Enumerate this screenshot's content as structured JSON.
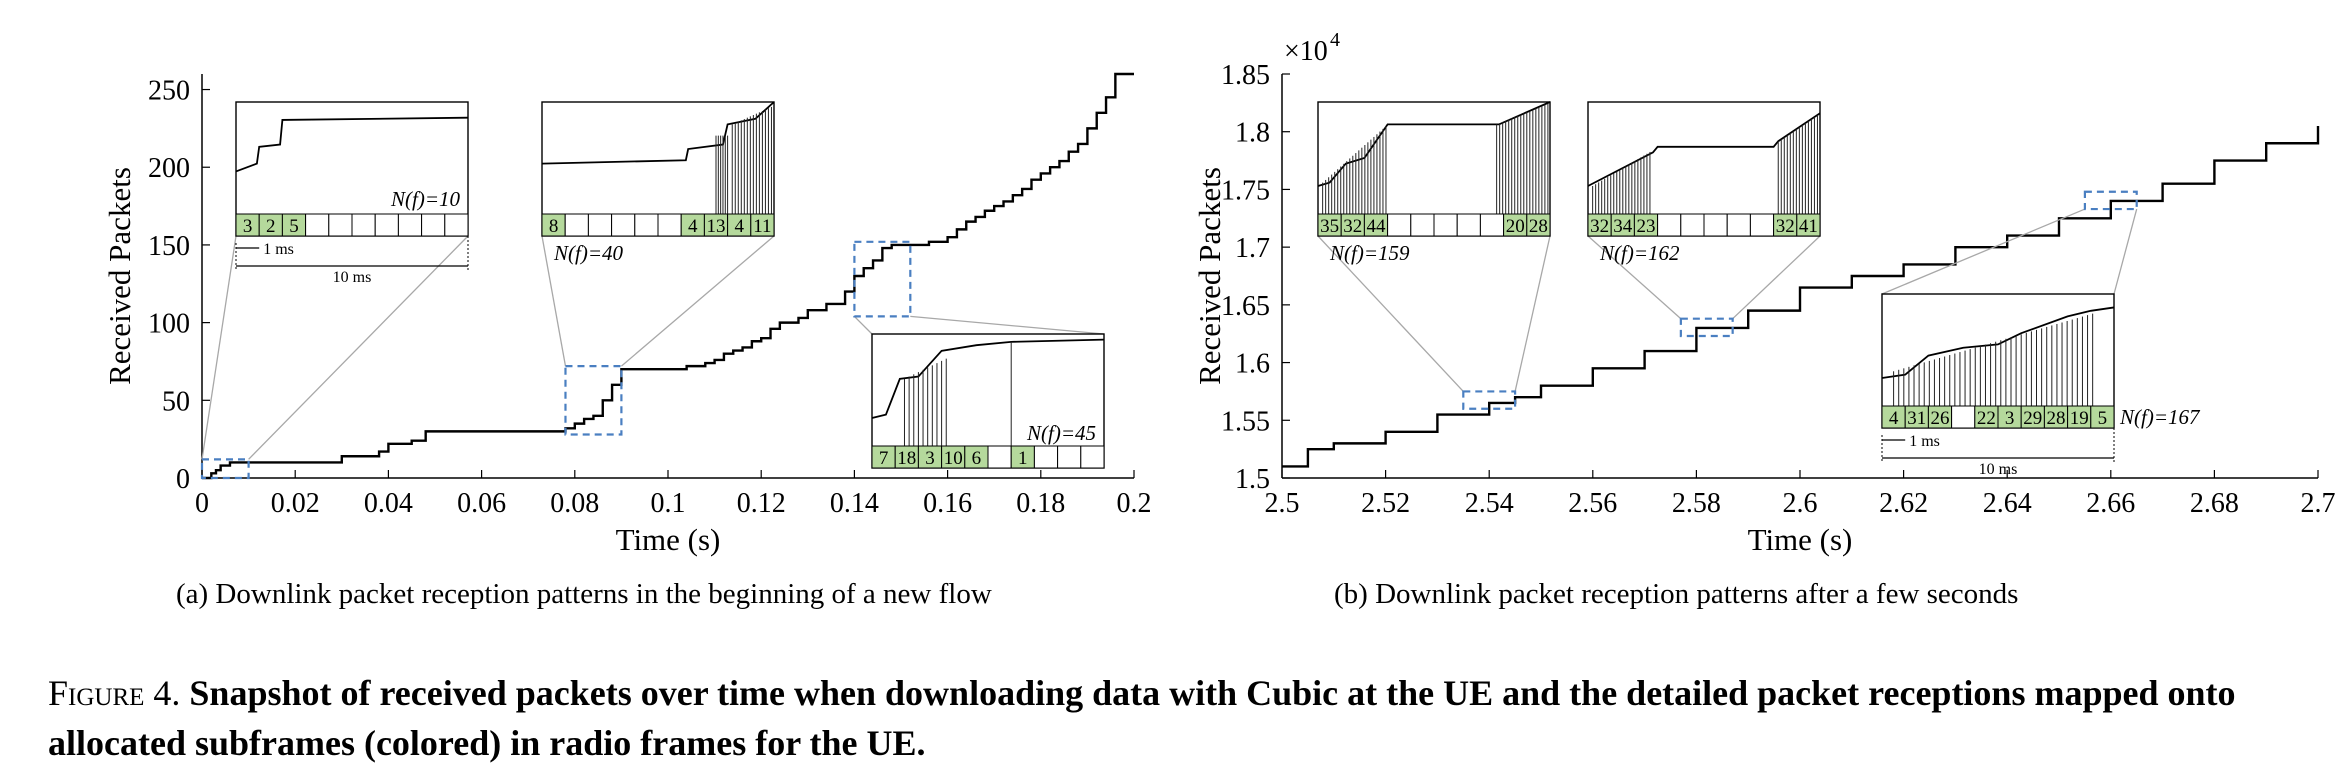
{
  "chart_data": [
    {
      "type": "line",
      "subcaption": "(a)  Downlink packet reception patterns in the beginning of a new flow",
      "xlabel": "Time (s)",
      "ylabel": "Received Packets",
      "xlim": [
        0,
        0.2
      ],
      "ylim": [
        0,
        260
      ],
      "x_ticks": [
        "0",
        "0.02",
        "0.04",
        "0.06",
        "0.08",
        "0.1",
        "0.12",
        "0.14",
        "0.16",
        "0.18",
        "0.2"
      ],
      "y_ticks": [
        "0",
        "50",
        "100",
        "150",
        "200",
        "250"
      ],
      "grid": false,
      "series": [
        {
          "x": [
            0,
            0.002,
            0.003,
            0.004,
            0.006,
            0.01,
            0.03,
            0.038,
            0.04,
            0.045,
            0.048,
            0.06,
            0.078,
            0.08,
            0.082,
            0.084,
            0.086,
            0.088,
            0.09,
            0.1,
            0.104,
            0.108,
            0.11,
            0.112,
            0.114,
            0.116,
            0.118,
            0.12,
            0.122,
            0.124,
            0.128,
            0.13,
            0.134,
            0.138,
            0.14,
            0.142,
            0.144,
            0.146,
            0.148,
            0.15,
            0.156,
            0.16,
            0.162,
            0.164,
            0.166,
            0.168,
            0.17,
            0.172,
            0.174,
            0.176,
            0.178,
            0.18,
            0.182,
            0.184,
            0.186,
            0.188,
            0.19,
            0.192,
            0.194,
            0.196,
            0.2
          ],
          "y": [
            0,
            3,
            5,
            8,
            10,
            10,
            14,
            17,
            22,
            24,
            30,
            30,
            32,
            35,
            38,
            40,
            50,
            60,
            70,
            70,
            72,
            74,
            76,
            80,
            82,
            84,
            88,
            90,
            96,
            100,
            103,
            108,
            112,
            120,
            130,
            135,
            140,
            148,
            150,
            150,
            152,
            155,
            160,
            165,
            168,
            172,
            175,
            178,
            182,
            186,
            192,
            196,
            200,
            204,
            210,
            215,
            225,
            235,
            245,
            260,
            260
          ]
        }
      ],
      "zoom_boxes": [
        {
          "x": [
            0,
            0.01
          ],
          "y": [
            0,
            12
          ]
        },
        {
          "x": [
            0.078,
            0.09
          ],
          "y": [
            28,
            72
          ]
        },
        {
          "x": [
            0.14,
            0.152
          ],
          "y": [
            104,
            152
          ]
        }
      ],
      "insets": [
        {
          "nf_label": "N(f)=10",
          "cells": [
            "3",
            "2",
            "5",
            "",
            "",
            "",
            "",
            "",
            "",
            ""
          ],
          "green": 3,
          "scale_1": "1 ms",
          "scale_10": "10 ms"
        },
        {
          "nf_label": "N(f)=40",
          "cells": [
            "8",
            "",
            "",
            "",
            "",
            "",
            "4",
            "13",
            "4",
            "11"
          ],
          "green_idx": [
            0,
            6,
            7,
            8,
            9
          ]
        },
        {
          "nf_label": "N(f)=45",
          "cells": [
            "7",
            "18",
            "3",
            "10",
            "6",
            "",
            "1",
            "",
            "",
            ""
          ],
          "green_idx": [
            0,
            1,
            2,
            3,
            4,
            6
          ]
        }
      ]
    },
    {
      "type": "line",
      "subcaption": "(b)  Downlink packet reception patterns after a few seconds",
      "xlabel": "Time (s)",
      "ylabel": "Received Packets",
      "y_multiplier": "×10",
      "y_multiplier_exp": "4",
      "xlim": [
        2.5,
        2.7
      ],
      "ylim": [
        1.5,
        1.85
      ],
      "x_ticks": [
        "2.5",
        "2.52",
        "2.54",
        "2.56",
        "2.58",
        "2.6",
        "2.62",
        "2.64",
        "2.66",
        "2.68",
        "2.7"
      ],
      "y_ticks": [
        "1.5",
        "1.55",
        "1.6",
        "1.65",
        "1.7",
        "1.75",
        "1.8",
        "1.85"
      ],
      "grid": false,
      "series": [
        {
          "x": [
            2.5,
            2.505,
            2.51,
            2.52,
            2.53,
            2.54,
            2.545,
            2.55,
            2.56,
            2.57,
            2.58,
            2.59,
            2.6,
            2.61,
            2.62,
            2.63,
            2.64,
            2.65,
            2.66,
            2.67,
            2.68,
            2.69,
            2.7
          ],
          "y": [
            1.51,
            1.525,
            1.53,
            1.54,
            1.555,
            1.565,
            1.57,
            1.58,
            1.595,
            1.61,
            1.63,
            1.645,
            1.665,
            1.675,
            1.685,
            1.7,
            1.71,
            1.725,
            1.74,
            1.755,
            1.775,
            1.79,
            1.805
          ]
        }
      ],
      "zoom_boxes": [
        {
          "x": [
            2.535,
            2.545
          ],
          "y": [
            1.56,
            1.575
          ]
        },
        {
          "x": [
            2.577,
            2.587
          ],
          "y": [
            1.623,
            1.638
          ]
        },
        {
          "x": [
            2.655,
            2.665
          ],
          "y": [
            1.733,
            1.748
          ]
        }
      ],
      "insets": [
        {
          "nf_label": "N(f)=159",
          "cells": [
            "35",
            "32",
            "44",
            "",
            "",
            "",
            "",
            "",
            "20",
            "28"
          ],
          "green_idx": [
            0,
            1,
            2,
            8,
            9
          ]
        },
        {
          "nf_label": "N(f)=162",
          "cells": [
            "32",
            "34",
            "23",
            "",
            "",
            "",
            "",
            "",
            "32",
            "41"
          ],
          "green_idx": [
            0,
            1,
            2,
            8,
            9
          ]
        },
        {
          "nf_label": "N(f)=167",
          "cells": [
            "4",
            "31",
            "26",
            "",
            "22",
            "3",
            "29",
            "28",
            "19",
            "5"
          ],
          "green_idx": [
            0,
            1,
            2,
            4,
            5,
            6,
            7,
            8,
            9
          ],
          "scale_1": "1 ms",
          "scale_10": "10 ms"
        }
      ]
    }
  ],
  "caption": {
    "label": "Figure 4.",
    "text": "Snapshot of received packets over time when downloading data with Cubic at the UE and the detailed packet receptions mapped onto allocated subframes (colored) in radio frames for the UE."
  },
  "colors": {
    "line": "#000000",
    "zoom_box": "#4a7fc1",
    "green_cell": "#b5d99c",
    "connector": "#a8a8a8"
  }
}
